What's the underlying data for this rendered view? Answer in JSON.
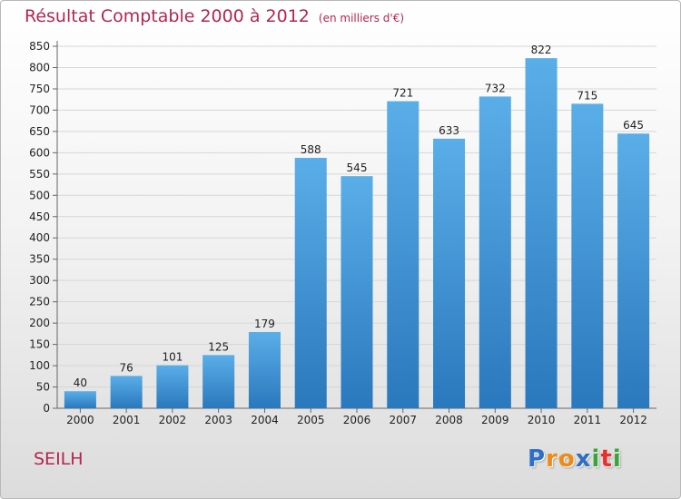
{
  "header": {
    "title": "Résultat Comptable 2000 à 2012",
    "subtitle": "(en milliers d'€)"
  },
  "footer": {
    "commune": "SEILH",
    "logo_letters": [
      "P",
      "r",
      "o",
      "x",
      "i",
      "t",
      "i"
    ],
    "logo_text": "Proxiti"
  },
  "colors": {
    "title": "#b3264f",
    "bar_top": "#5aaee8",
    "bar_bottom": "#2a78bd",
    "logo": [
      "#2d6fc4",
      "#f08a12",
      "#f08a12",
      "#2d6fc4",
      "#3aa33a",
      "#e8302a",
      "#3aa33a"
    ]
  },
  "chart_data": {
    "type": "bar",
    "title": "Résultat Comptable 2000 à 2012",
    "subtitle": "(en milliers d'€)",
    "xlabel": "",
    "ylabel": "",
    "categories": [
      "2000",
      "2001",
      "2002",
      "2003",
      "2004",
      "2005",
      "2006",
      "2007",
      "2008",
      "2009",
      "2010",
      "2011",
      "2012"
    ],
    "values": [
      40,
      76,
      101,
      125,
      179,
      588,
      545,
      721,
      633,
      732,
      822,
      715,
      645
    ],
    "ylim": [
      0,
      850
    ],
    "yticks": [
      0,
      50,
      100,
      150,
      200,
      250,
      300,
      350,
      400,
      450,
      500,
      550,
      600,
      650,
      700,
      750,
      800,
      850
    ],
    "grid": true,
    "data_labels": true
  }
}
